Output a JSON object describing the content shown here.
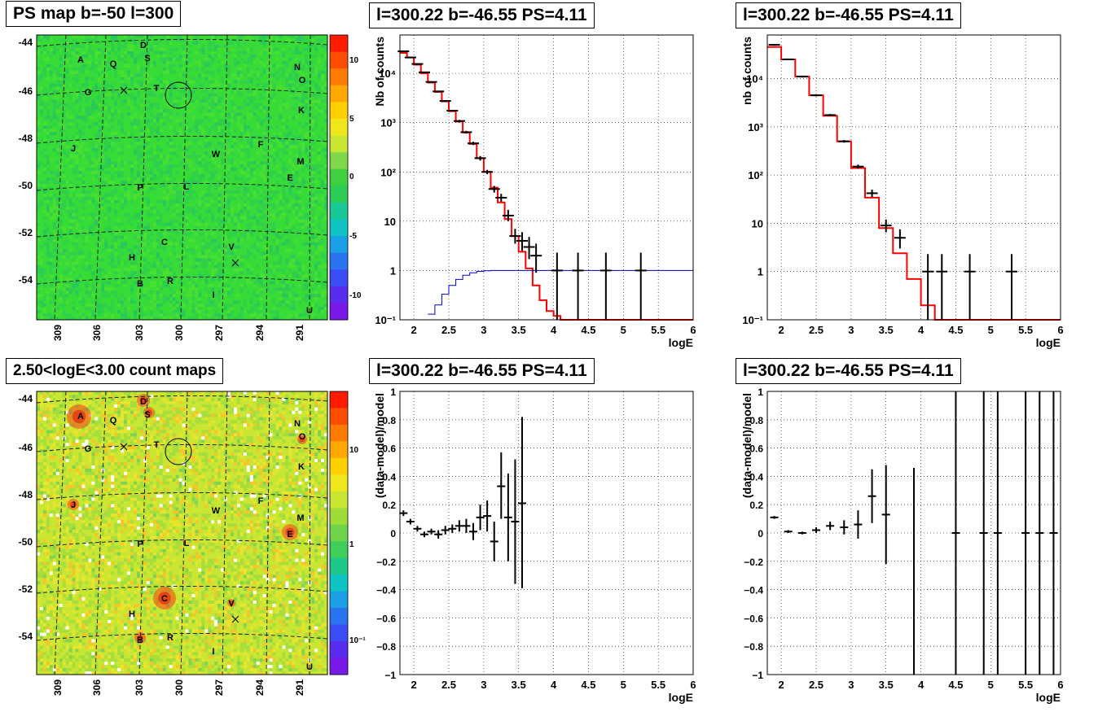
{
  "titles": {
    "map1": "PS map b=-50 l=300",
    "map2": "2.50<logE<3.00 count maps",
    "spec1": "l=300.22 b=-46.55 PS=4.11",
    "spec2": "l=300.22 b=-46.55 PS=4.11",
    "res1": "l=300.22 b=-46.55 PS=4.11",
    "res2": "l=300.22 b=-46.55 PS=4.11"
  },
  "maps": {
    "y_ticks": [
      "-44",
      "-46",
      "-48",
      "-50",
      "-52",
      "-54"
    ],
    "x_ticks": [
      "309",
      "306",
      "303",
      "300",
      "297",
      "294",
      "291"
    ],
    "source_labels": [
      "A",
      "Q",
      "D",
      "S",
      "N",
      "O",
      "G",
      "T",
      "K",
      "J",
      "W",
      "F",
      "M",
      "E",
      "P",
      "L",
      "C",
      "V",
      "H",
      "B",
      "R",
      "I",
      "U"
    ],
    "ps_colorbar_ticks": [
      "10",
      "5",
      "0",
      "-5",
      "-10"
    ],
    "count_colorbar_ticks": [
      "10",
      "1",
      "10⁻¹"
    ],
    "colors": {
      "ps_background": "#2fdc3a",
      "count_background": "#c8e632",
      "hot_source": "#f2401a"
    }
  },
  "chart_data": [
    {
      "id": "spec1",
      "type": "line",
      "log_y": true,
      "xlabel": "logE",
      "ylabel": "Nb of counts",
      "xlim": [
        1.8,
        6
      ],
      "ylim": [
        0.1,
        60000
      ],
      "x_ticks": [
        "2",
        "2.5",
        "3",
        "3.5",
        "4",
        "4.5",
        "5",
        "5.5",
        "6"
      ],
      "y_ticks": [
        "10⁻¹",
        "1",
        "10",
        "10²",
        "10³",
        "10⁴"
      ],
      "series": [
        {
          "role": "model",
          "color": "#ff0000",
          "step_edges": [
            1.8,
            1.9,
            2.0,
            2.1,
            2.2,
            2.3,
            2.4,
            2.5,
            2.6,
            2.7,
            2.8,
            2.9,
            3.0,
            3.1,
            3.2,
            3.3,
            3.4,
            3.5,
            3.6,
            3.7,
            3.8,
            3.9,
            4.0,
            4.1,
            4.2,
            6.0
          ],
          "values": [
            26000,
            21000,
            15000,
            10000,
            6500,
            4200,
            2700,
            1700,
            1050,
            630,
            370,
            190,
            100,
            48,
            24,
            11,
            5,
            2.4,
            1.1,
            0.5,
            0.25,
            0.15,
            0.12,
            0.1,
            0.1
          ]
        },
        {
          "role": "background",
          "color": "#0000cc",
          "step_edges": [
            2.2,
            2.3,
            2.4,
            2.5,
            2.6,
            2.7,
            2.8,
            2.9,
            3.0,
            3.1,
            3.2,
            3.3,
            6.0
          ],
          "values": [
            0.13,
            0.2,
            0.33,
            0.5,
            0.66,
            0.8,
            0.9,
            0.96,
            0.99,
            1.0,
            1.0,
            1.0
          ]
        },
        {
          "role": "data",
          "color": "#000000",
          "points": [
            {
              "x": 1.85,
              "y": 28000,
              "lo": 27000,
              "hi": 29000
            },
            {
              "x": 1.95,
              "y": 21000,
              "lo": 20500,
              "hi": 21500
            },
            {
              "x": 2.05,
              "y": 15500,
              "lo": 15000,
              "hi": 16000
            },
            {
              "x": 2.15,
              "y": 10500,
              "lo": 10200,
              "hi": 10800
            },
            {
              "x": 2.25,
              "y": 6700,
              "lo": 6500,
              "hi": 6900
            },
            {
              "x": 2.35,
              "y": 4300,
              "lo": 4150,
              "hi": 4450
            },
            {
              "x": 2.45,
              "y": 2750,
              "lo": 2650,
              "hi": 2850
            },
            {
              "x": 2.55,
              "y": 1750,
              "lo": 1680,
              "hi": 1820
            },
            {
              "x": 2.65,
              "y": 1080,
              "lo": 1020,
              "hi": 1140
            },
            {
              "x": 2.75,
              "y": 640,
              "lo": 600,
              "hi": 680
            },
            {
              "x": 2.85,
              "y": 380,
              "lo": 350,
              "hi": 410
            },
            {
              "x": 2.95,
              "y": 190,
              "lo": 170,
              "hi": 210
            },
            {
              "x": 3.05,
              "y": 100,
              "lo": 90,
              "hi": 110
            },
            {
              "x": 3.15,
              "y": 45,
              "lo": 38,
              "hi": 52
            },
            {
              "x": 3.25,
              "y": 30,
              "lo": 25,
              "hi": 36
            },
            {
              "x": 3.35,
              "y": 13,
              "lo": 10,
              "hi": 17
            },
            {
              "x": 3.45,
              "y": 5,
              "lo": 3.5,
              "hi": 7
            },
            {
              "x": 3.55,
              "y": 4,
              "lo": 2.5,
              "hi": 6
            },
            {
              "x": 3.65,
              "y": 3,
              "lo": 1.7,
              "hi": 4.8
            },
            {
              "x": 3.75,
              "y": 2,
              "lo": 0.9,
              "hi": 3.5
            },
            {
              "x": 4.05,
              "y": 1,
              "lo": 0.1,
              "hi": 2.3
            },
            {
              "x": 4.35,
              "y": 1,
              "lo": 0.1,
              "hi": 2.3
            },
            {
              "x": 4.75,
              "y": 1,
              "lo": 0.1,
              "hi": 2.3
            },
            {
              "x": 5.25,
              "y": 1,
              "lo": 0.1,
              "hi": 2.3
            }
          ]
        }
      ]
    },
    {
      "id": "spec2",
      "type": "line",
      "log_y": true,
      "xlabel": "logE",
      "ylabel": "nb of counts",
      "xlim": [
        1.8,
        6
      ],
      "ylim": [
        0.1,
        80000
      ],
      "x_ticks": [
        "2",
        "2.5",
        "3",
        "3.5",
        "4",
        "4.5",
        "5",
        "5.5",
        "6"
      ],
      "y_ticks": [
        "10⁻¹",
        "1",
        "10",
        "10²",
        "10³",
        "10⁴"
      ],
      "series": [
        {
          "role": "model",
          "color": "#ff0000",
          "step_edges": [
            1.8,
            2.0,
            2.2,
            2.4,
            2.6,
            2.8,
            3.0,
            3.2,
            3.4,
            3.6,
            3.8,
            4.0,
            4.2,
            6.0
          ],
          "values": [
            45000,
            25000,
            11000,
            4500,
            1700,
            500,
            140,
            34,
            8,
            2.4,
            0.7,
            0.2,
            0.1
          ]
        },
        {
          "role": "data",
          "color": "#000000",
          "points": [
            {
              "x": 1.9,
              "y": 50000,
              "lo": 48000,
              "hi": 52000
            },
            {
              "x": 2.1,
              "y": 25000,
              "lo": 24000,
              "hi": 26000
            },
            {
              "x": 2.3,
              "y": 11000,
              "lo": 10500,
              "hi": 11500
            },
            {
              "x": 2.5,
              "y": 4500,
              "lo": 4300,
              "hi": 4700
            },
            {
              "x": 2.7,
              "y": 1750,
              "lo": 1650,
              "hi": 1850
            },
            {
              "x": 2.9,
              "y": 500,
              "lo": 470,
              "hi": 530
            },
            {
              "x": 3.1,
              "y": 150,
              "lo": 135,
              "hi": 165
            },
            {
              "x": 3.3,
              "y": 42,
              "lo": 35,
              "hi": 50
            },
            {
              "x": 3.5,
              "y": 9,
              "lo": 6.5,
              "hi": 12
            },
            {
              "x": 3.7,
              "y": 5,
              "lo": 3,
              "hi": 7.5
            },
            {
              "x": 4.1,
              "y": 1,
              "lo": 0.1,
              "hi": 2.3
            },
            {
              "x": 4.3,
              "y": 1,
              "lo": 0.1,
              "hi": 2.3
            },
            {
              "x": 4.7,
              "y": 1,
              "lo": 0.1,
              "hi": 2.3
            },
            {
              "x": 5.3,
              "y": 1,
              "lo": 0.1,
              "hi": 2.3
            }
          ]
        }
      ]
    },
    {
      "id": "res1",
      "type": "scatter",
      "xlabel": "logE",
      "ylabel": "(data-model)/model",
      "xlim": [
        1.8,
        6
      ],
      "ylim": [
        -1,
        1
      ],
      "x_ticks": [
        "2",
        "2.5",
        "3",
        "3.5",
        "4",
        "4.5",
        "5",
        "5.5",
        "6"
      ],
      "y_ticks": [
        "−1",
        "−0.8",
        "−0.6",
        "−0.4",
        "−0.2",
        "0",
        "0.2",
        "0.4",
        "0.6",
        "0.8",
        "1"
      ],
      "points": [
        {
          "x": 1.85,
          "y": 0.14,
          "lo": 0.12,
          "hi": 0.16
        },
        {
          "x": 1.95,
          "y": 0.08,
          "lo": 0.06,
          "hi": 0.1
        },
        {
          "x": 2.05,
          "y": 0.03,
          "lo": 0.01,
          "hi": 0.05
        },
        {
          "x": 2.15,
          "y": -0.01,
          "lo": -0.03,
          "hi": 0.01
        },
        {
          "x": 2.25,
          "y": 0.01,
          "lo": -0.01,
          "hi": 0.03
        },
        {
          "x": 2.35,
          "y": -0.01,
          "lo": -0.04,
          "hi": 0.02
        },
        {
          "x": 2.45,
          "y": 0.02,
          "lo": -0.01,
          "hi": 0.05
        },
        {
          "x": 2.55,
          "y": 0.03,
          "lo": 0.0,
          "hi": 0.06
        },
        {
          "x": 2.65,
          "y": 0.05,
          "lo": 0.01,
          "hi": 0.09
        },
        {
          "x": 2.75,
          "y": 0.05,
          "lo": 0.0,
          "hi": 0.1
        },
        {
          "x": 2.85,
          "y": 0.01,
          "lo": -0.05,
          "hi": 0.07
        },
        {
          "x": 2.95,
          "y": 0.11,
          "lo": 0.02,
          "hi": 0.2
        },
        {
          "x": 3.05,
          "y": 0.12,
          "lo": 0.01,
          "hi": 0.23
        },
        {
          "x": 3.15,
          "y": -0.06,
          "lo": -0.2,
          "hi": 0.08
        },
        {
          "x": 3.25,
          "y": 0.33,
          "lo": 0.1,
          "hi": 0.57
        },
        {
          "x": 3.35,
          "y": 0.11,
          "lo": -0.2,
          "hi": 0.42
        },
        {
          "x": 3.45,
          "y": 0.08,
          "lo": -0.36,
          "hi": 0.52
        },
        {
          "x": 3.55,
          "y": 0.21,
          "lo": -0.39,
          "hi": 0.82
        }
      ]
    },
    {
      "id": "res2",
      "type": "scatter",
      "xlabel": "logE",
      "ylabel": "(data-model)/model",
      "xlim": [
        1.8,
        6
      ],
      "ylim": [
        -1,
        1
      ],
      "x_ticks": [
        "2",
        "2.5",
        "3",
        "3.5",
        "4",
        "4.5",
        "5",
        "5.5",
        "6"
      ],
      "y_ticks": [
        "−1",
        "−0.8",
        "−0.6",
        "−0.4",
        "−0.2",
        "0",
        "0.2",
        "0.4",
        "0.6",
        "0.8",
        "1"
      ],
      "points": [
        {
          "x": 1.9,
          "y": 0.11,
          "lo": 0.1,
          "hi": 0.12
        },
        {
          "x": 2.1,
          "y": 0.01,
          "lo": 0.0,
          "hi": 0.02
        },
        {
          "x": 2.3,
          "y": 0.0,
          "lo": -0.01,
          "hi": 0.01
        },
        {
          "x": 2.5,
          "y": 0.02,
          "lo": 0.0,
          "hi": 0.04
        },
        {
          "x": 2.7,
          "y": 0.05,
          "lo": 0.02,
          "hi": 0.08
        },
        {
          "x": 2.9,
          "y": 0.04,
          "lo": -0.01,
          "hi": 0.09
        },
        {
          "x": 3.1,
          "y": 0.06,
          "lo": -0.04,
          "hi": 0.16
        },
        {
          "x": 3.3,
          "y": 0.26,
          "lo": 0.07,
          "hi": 0.45
        },
        {
          "x": 3.5,
          "y": 0.13,
          "lo": -0.22,
          "hi": 0.48
        },
        {
          "x": 3.9,
          "y": -1,
          "lo": -1,
          "hi": 0.46
        },
        {
          "x": 4.5,
          "y": 0.0,
          "lo": -1,
          "hi": 1
        },
        {
          "x": 4.9,
          "y": 0.0,
          "lo": -1,
          "hi": 1
        },
        {
          "x": 5.1,
          "y": 0.0,
          "lo": -1,
          "hi": 1
        },
        {
          "x": 5.5,
          "y": 0.0,
          "lo": -1,
          "hi": 1
        },
        {
          "x": 5.7,
          "y": 0.0,
          "lo": -1,
          "hi": 1
        },
        {
          "x": 5.9,
          "y": 0.0,
          "lo": -1,
          "hi": 1
        }
      ]
    }
  ]
}
